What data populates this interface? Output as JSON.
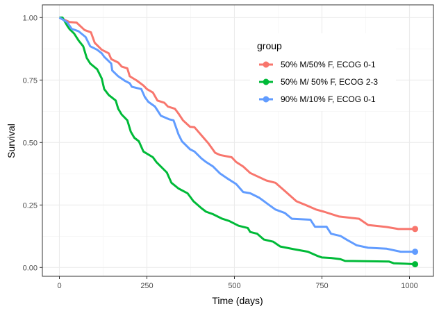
{
  "chart_data": {
    "type": "line",
    "title": "",
    "xlabel": "Time (days)",
    "ylabel": "Survival",
    "xlim": [
      -50,
      1070
    ],
    "ylim": [
      -0.035,
      1.05
    ],
    "x_ticks": [
      0,
      250,
      500,
      750,
      1000
    ],
    "x_tick_labels": [
      "0",
      "250",
      "500",
      "750",
      "1000"
    ],
    "y_ticks": [
      0,
      0.25,
      0.5,
      0.75,
      1.0
    ],
    "y_tick_labels": [
      "0.00",
      "0.25",
      "0.50",
      "0.75",
      "1.00"
    ],
    "grid": true,
    "legend": {
      "title": "group",
      "placement": "top-right-inside"
    },
    "series": [
      {
        "name": "50% M/50% F, ECOG 0-1",
        "color": "#F8766D",
        "x": [
          0,
          29,
          49,
          72,
          90,
          101,
          121,
          141,
          148,
          168,
          178,
          194,
          201,
          221,
          240,
          250,
          267,
          280,
          300,
          310,
          330,
          340,
          353,
          373,
          386,
          412,
          426,
          445,
          459,
          492,
          505,
          525,
          545,
          571,
          591,
          617,
          644,
          677,
          710,
          733,
          756,
          799,
          856,
          882,
          935,
          968,
          1016
        ],
        "y": [
          1.0,
          0.982,
          0.98,
          0.95,
          0.941,
          0.899,
          0.871,
          0.857,
          0.834,
          0.82,
          0.804,
          0.797,
          0.765,
          0.748,
          0.728,
          0.714,
          0.7,
          0.668,
          0.659,
          0.644,
          0.635,
          0.616,
          0.589,
          0.563,
          0.561,
          0.519,
          0.496,
          0.459,
          0.45,
          0.441,
          0.422,
          0.404,
          0.378,
          0.361,
          0.348,
          0.339,
          0.306,
          0.265,
          0.246,
          0.232,
          0.223,
          0.204,
          0.195,
          0.17,
          0.162,
          0.154,
          0.154
        ]
      },
      {
        "name": "50% M/ 50% F, ECOG 2-3",
        "color": "#00BA38",
        "x": [
          0,
          9,
          22,
          29,
          42,
          55,
          68,
          78,
          88,
          108,
          121,
          128,
          141,
          161,
          168,
          178,
          194,
          204,
          214,
          227,
          240,
          267,
          277,
          307,
          320,
          340,
          366,
          383,
          406,
          419,
          439,
          465,
          485,
          512,
          538,
          545,
          565,
          584,
          611,
          631,
          670,
          710,
          736,
          750,
          776,
          803,
          816,
          941,
          955,
          988,
          1016
        ],
        "y": [
          1.0,
          1.0,
          0.968,
          0.954,
          0.936,
          0.908,
          0.885,
          0.839,
          0.816,
          0.793,
          0.756,
          0.714,
          0.69,
          0.668,
          0.635,
          0.612,
          0.589,
          0.543,
          0.519,
          0.505,
          0.464,
          0.441,
          0.422,
          0.38,
          0.339,
          0.316,
          0.297,
          0.265,
          0.237,
          0.223,
          0.213,
          0.195,
          0.186,
          0.167,
          0.158,
          0.142,
          0.135,
          0.112,
          0.103,
          0.084,
          0.073,
          0.063,
          0.047,
          0.04,
          0.038,
          0.033,
          0.026,
          0.024,
          0.017,
          0.015,
          0.013
        ]
      },
      {
        "name": "90% M/10% F, ECOG 0-1",
        "color": "#619CFF",
        "x": [
          0,
          22,
          35,
          55,
          75,
          88,
          108,
          121,
          128,
          148,
          151,
          168,
          188,
          201,
          207,
          234,
          244,
          254,
          273,
          290,
          313,
          326,
          340,
          350,
          373,
          386,
          406,
          419,
          439,
          459,
          479,
          505,
          525,
          545,
          571,
          598,
          617,
          644,
          664,
          717,
          730,
          763,
          776,
          803,
          822,
          849,
          882,
          935,
          975,
          1016
        ],
        "y": [
          1.0,
          0.982,
          0.955,
          0.945,
          0.922,
          0.885,
          0.871,
          0.857,
          0.843,
          0.816,
          0.788,
          0.765,
          0.746,
          0.737,
          0.723,
          0.714,
          0.682,
          0.663,
          0.644,
          0.607,
          0.593,
          0.589,
          0.533,
          0.505,
          0.473,
          0.464,
          0.436,
          0.422,
          0.404,
          0.376,
          0.357,
          0.334,
          0.302,
          0.297,
          0.279,
          0.251,
          0.232,
          0.218,
          0.195,
          0.191,
          0.163,
          0.163,
          0.135,
          0.126,
          0.11,
          0.089,
          0.079,
          0.075,
          0.063,
          0.063
        ]
      }
    ]
  }
}
